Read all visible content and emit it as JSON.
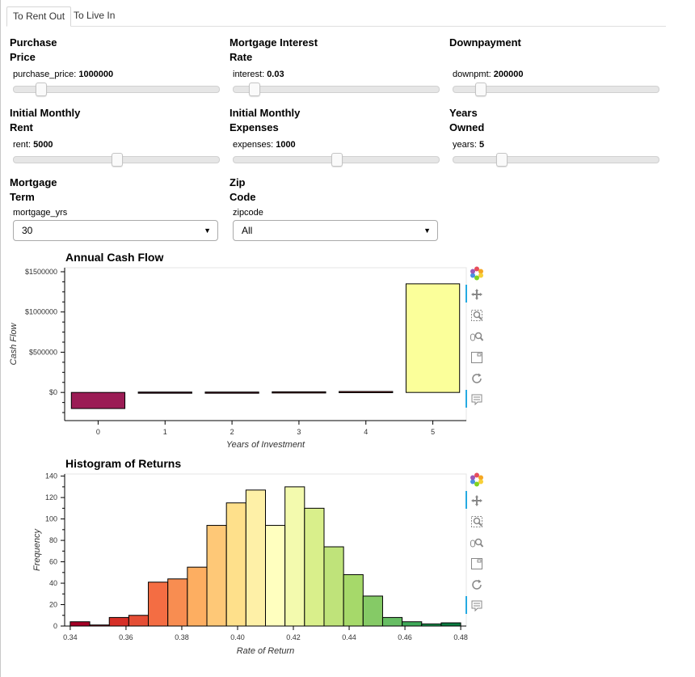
{
  "tabs": [
    {
      "label": "To Rent Out",
      "active": true
    },
    {
      "label": "To Live In",
      "active": false
    }
  ],
  "controls": {
    "purchase_price": {
      "title1": "Purchase",
      "title2": "Price",
      "name": "purchase_price: ",
      "value": "1000000",
      "fraction": 0.11
    },
    "interest": {
      "title1": "Mortgage Interest",
      "title2": "Rate",
      "name": "interest: ",
      "value": "0.03",
      "fraction": 0.08
    },
    "downpayment": {
      "title1": "Downpayment",
      "title2": "",
      "name": "downpmt: ",
      "value": "200000",
      "fraction": 0.11
    },
    "rent": {
      "title1": "Initial Monthly",
      "title2": "Rent",
      "name": "rent: ",
      "value": "5000",
      "fraction": 0.5
    },
    "expenses": {
      "title1": "Initial Monthly",
      "title2": "Expenses",
      "name": "expenses: ",
      "value": "1000",
      "fraction": 0.5
    },
    "years": {
      "title1": "Years",
      "title2": "Owned",
      "name": "years: ",
      "value": "5",
      "fraction": 0.22
    },
    "mortgage_term": {
      "title1": "Mortgage",
      "title2": "Term",
      "label": "mortgage_yrs",
      "selected": "30"
    },
    "zipcode": {
      "title1": "Zip",
      "title2": "Code",
      "label": "zipcode",
      "selected": "All"
    }
  },
  "tools": [
    "bokeh-logo-icon",
    "pan-icon",
    "box-zoom-icon",
    "wheel-zoom-icon",
    "save-icon",
    "reset-icon",
    "hover-icon"
  ],
  "chart_data": [
    {
      "type": "bar",
      "title": "Annual Cash Flow",
      "xlabel": "Years of Investment",
      "ylabel": "Cash Flow",
      "categories": [
        "0",
        "1",
        "2",
        "3",
        "4",
        "5"
      ],
      "values": [
        -200000,
        5000,
        5000,
        8000,
        12000,
        1350000
      ],
      "colors": [
        "#9b1c55",
        "#4a0d1e",
        "#5a1424",
        "#6b1d2a",
        "#8a2f2f",
        "#fbff9a"
      ],
      "ylim": [
        -350000,
        1550000
      ],
      "yticks": [
        0,
        500000,
        1000000,
        1500000
      ],
      "ytick_labels": [
        "$0",
        "$500000",
        "$1000000",
        "$1500000"
      ]
    },
    {
      "type": "bar",
      "title": "Histogram of Returns",
      "xlabel": "Rate of Return",
      "ylabel": "Frequency",
      "bin_edges": [
        0.34,
        0.347,
        0.354,
        0.361,
        0.368,
        0.375,
        0.382,
        0.389,
        0.396,
        0.403,
        0.41,
        0.417,
        0.424,
        0.431,
        0.438,
        0.445,
        0.452,
        0.459,
        0.466,
        0.473,
        0.48
      ],
      "values": [
        4,
        1,
        8,
        10,
        41,
        44,
        55,
        94,
        115,
        127,
        94,
        130,
        110,
        74,
        48,
        28,
        8,
        4,
        2,
        3
      ],
      "colors": [
        "#a50026",
        "#bd1726",
        "#d62f27",
        "#e54e35",
        "#f46d43",
        "#f88d51",
        "#fdae61",
        "#fec877",
        "#fee08b",
        "#fef0a7",
        "#ffffbf",
        "#f3faae",
        "#d9ef8b",
        "#bfe37a",
        "#a6d96a",
        "#85ca66",
        "#66bd63",
        "#3faa59",
        "#1a9850",
        "#0b7d42"
      ],
      "xlim": [
        0.338,
        0.482
      ],
      "ylim": [
        0,
        142
      ],
      "xticks": [
        0.34,
        0.36,
        0.38,
        0.4,
        0.42,
        0.44,
        0.46,
        0.48
      ],
      "xtick_labels": [
        "0.34",
        "0.36",
        "0.38",
        "0.40",
        "0.42",
        "0.44",
        "0.46",
        "0.48"
      ],
      "yticks": [
        0,
        20,
        40,
        60,
        80,
        100,
        120,
        140
      ],
      "ytick_labels": [
        "0",
        "20",
        "40",
        "60",
        "80",
        "100",
        "120",
        "140"
      ]
    }
  ]
}
